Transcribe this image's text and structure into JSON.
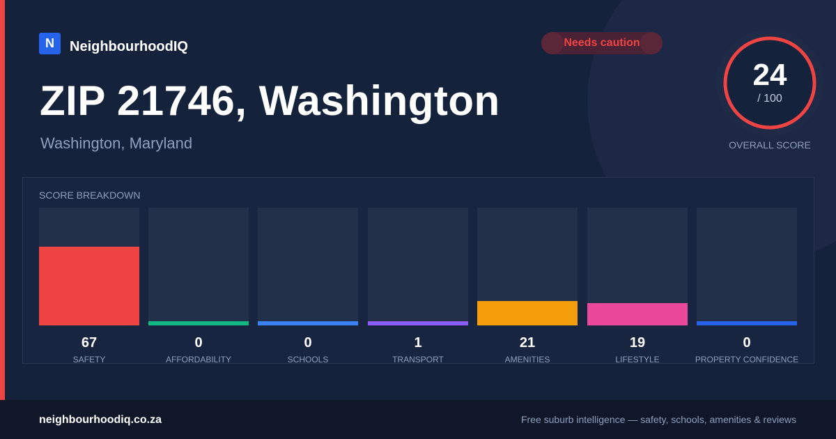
{
  "brand": {
    "logo_letter": "N",
    "name": "NeighbourhoodIQ"
  },
  "status_badge": "Needs caution",
  "title": "ZIP 21746, Washington",
  "subtitle": "Washington, Maryland",
  "score": {
    "value": "24",
    "max": "/ 100",
    "label": "OVERALL SCORE",
    "fraction": 0.24
  },
  "breakdown": {
    "title": "SCORE BREAKDOWN",
    "items": [
      {
        "value": "67",
        "label": "SAFETY",
        "color": "#ef4444"
      },
      {
        "value": "0",
        "label": "AFFORDABILITY",
        "color": "#10b981"
      },
      {
        "value": "0",
        "label": "SCHOOLS",
        "color": "#3b82f6"
      },
      {
        "value": "1",
        "label": "TRANSPORT",
        "color": "#8b5cf6"
      },
      {
        "value": "21",
        "label": "AMENITIES",
        "color": "#f59e0b"
      },
      {
        "value": "19",
        "label": "LIFESTYLE",
        "color": "#ec4899"
      },
      {
        "value": "0",
        "label": "PROPERTY CONFIDENCE",
        "color": "#2563eb"
      }
    ]
  },
  "footer": {
    "url": "neighbourhoodiq.co.za",
    "tagline": "Free suburb intelligence — safety, schools, amenities & reviews"
  },
  "colors": {
    "accent": "#ef4444",
    "brand": "#2563eb"
  }
}
